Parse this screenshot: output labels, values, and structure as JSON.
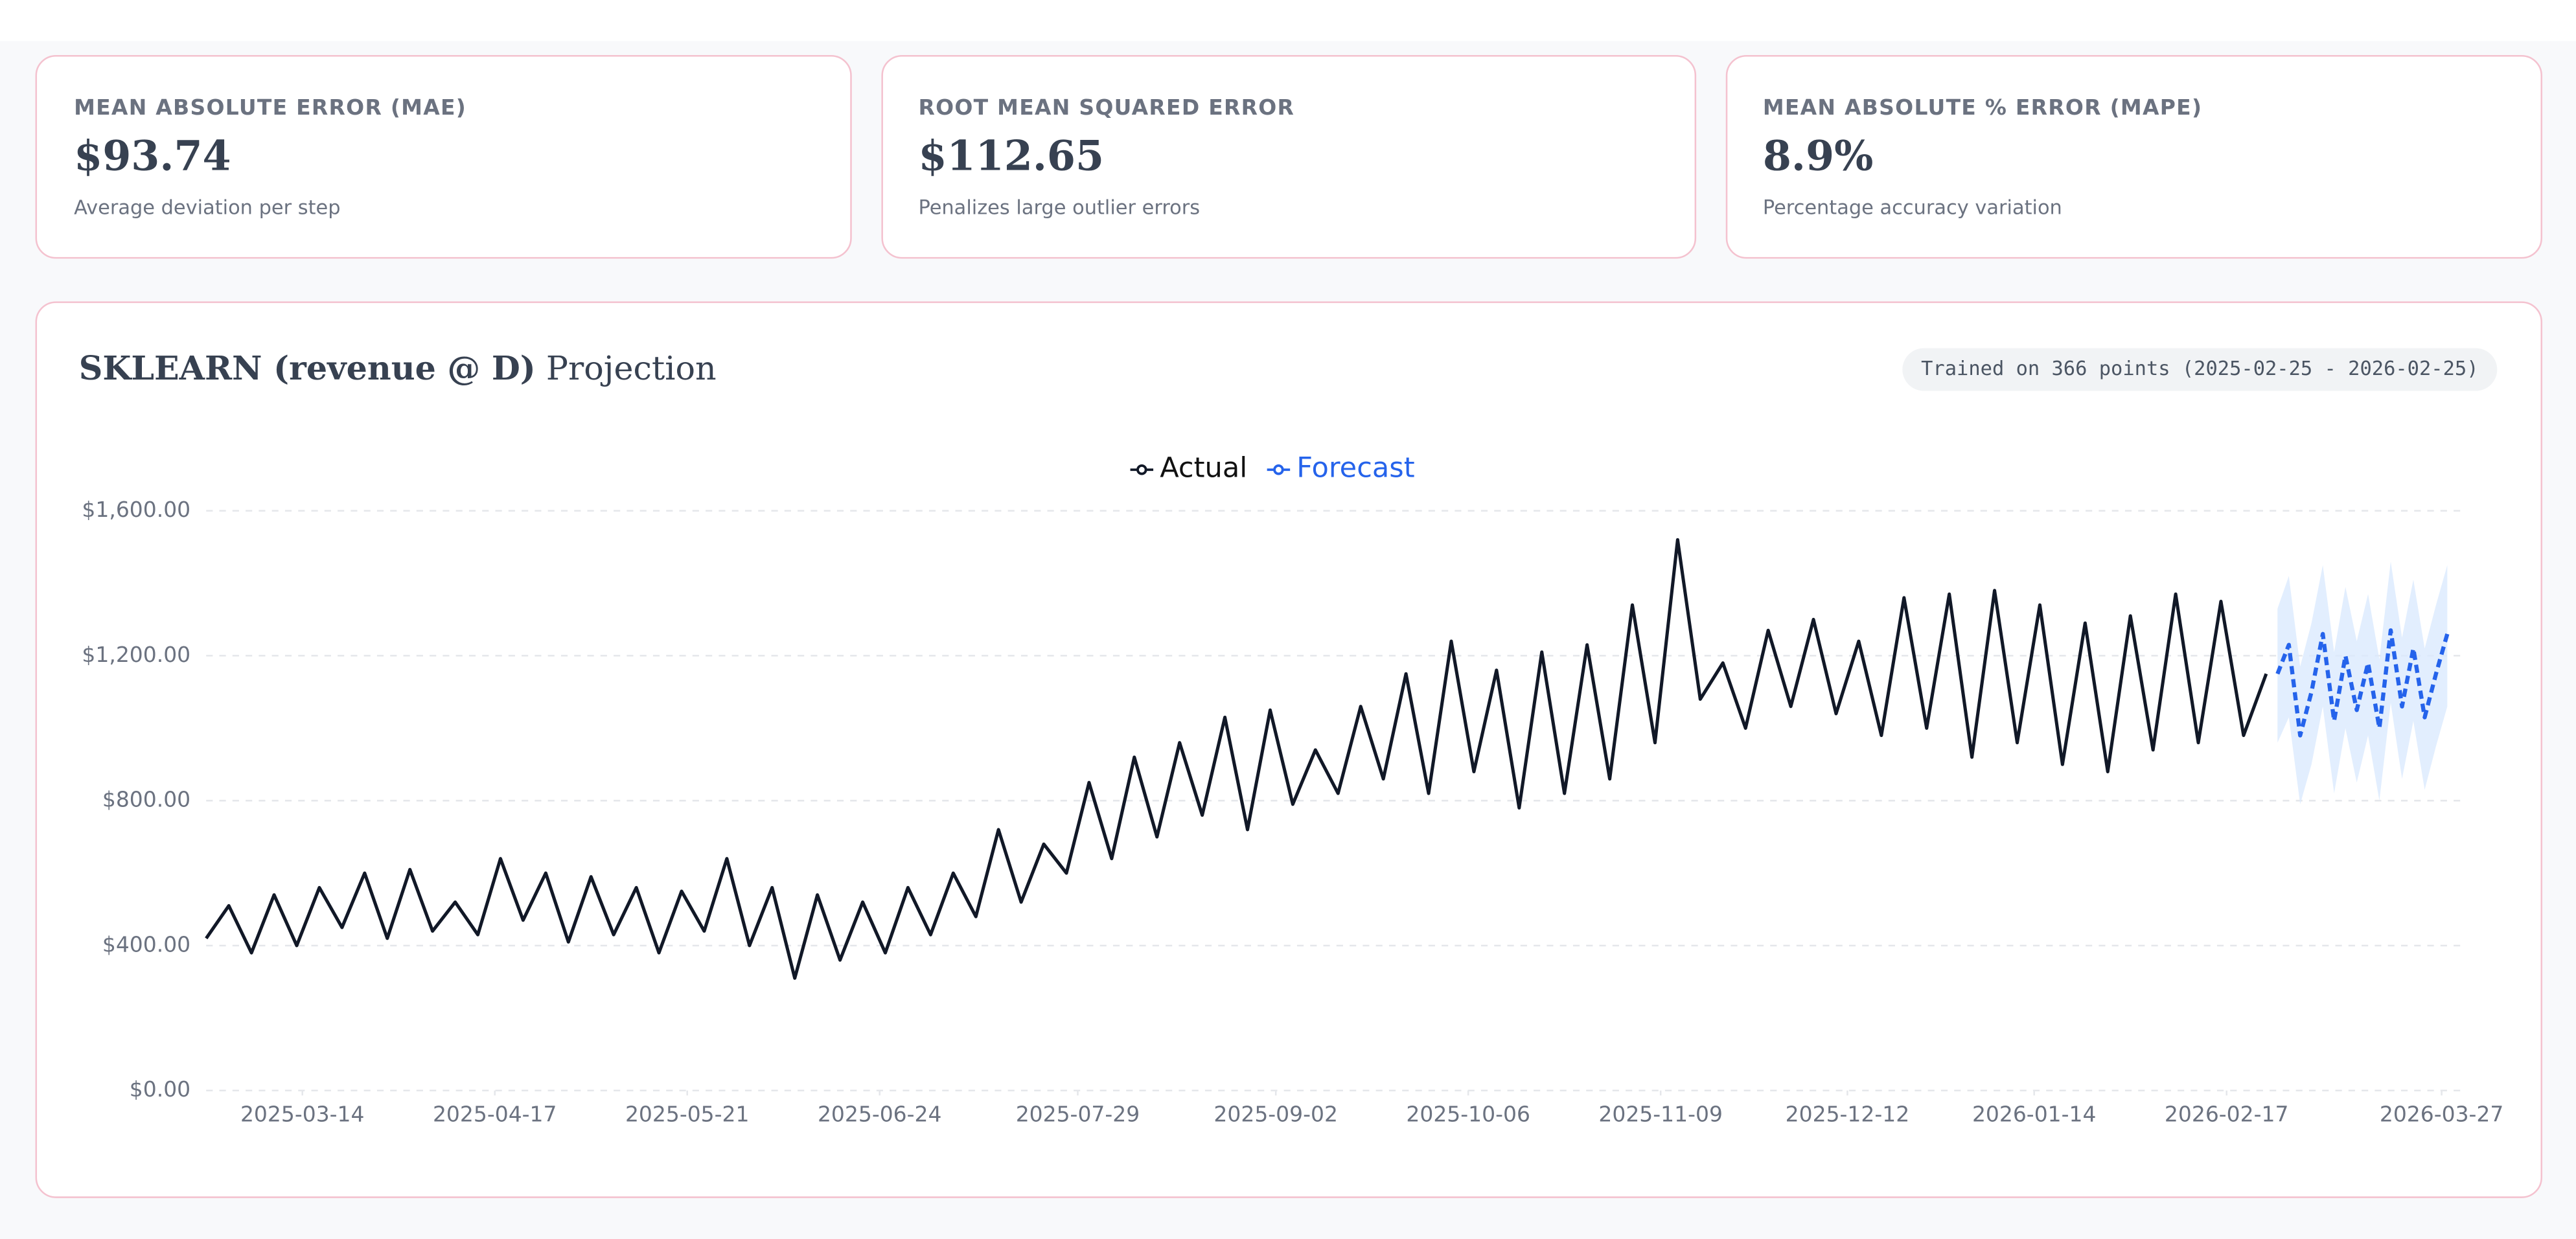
{
  "cards": [
    {
      "label": "MEAN ABSOLUTE ERROR (MAE)",
      "value": "$93.74",
      "note": "Average deviation per step"
    },
    {
      "label": "ROOT MEAN SQUARED ERROR",
      "value": "$112.65",
      "note": "Penalizes large outlier errors"
    },
    {
      "label": "MEAN ABSOLUTE % ERROR (MAPE)",
      "value": "8.9%",
      "note": "Percentage accuracy variation"
    }
  ],
  "chart_data": {
    "type": "line",
    "title": "SKLEARN (revenue @ D)",
    "title_rest": "Projection",
    "badge": "Trained on 366 points (2025-02-25 - 2026-02-25)",
    "xlim": [
      "2025-02-25",
      "2026-03-31"
    ],
    "xticks": [
      "2025-03-14",
      "2025-04-17",
      "2025-05-21",
      "2025-06-24",
      "2025-07-29",
      "2025-09-02",
      "2025-10-06",
      "2025-11-09",
      "2025-12-12",
      "2026-01-14",
      "2026-02-17",
      "2026-03-27"
    ],
    "ylim": [
      0,
      1600
    ],
    "yticks": [
      {
        "value": 0,
        "label": "$0.00"
      },
      {
        "value": 400,
        "label": "$400.00"
      },
      {
        "value": 800,
        "label": "$800.00"
      },
      {
        "value": 1200,
        "label": "$1,200.00"
      },
      {
        "value": 1600,
        "label": "$1,600.00"
      }
    ],
    "grid": true,
    "legend": "top",
    "series": [
      {
        "name": "Actual",
        "color": "#111827",
        "x": [
          "2025-02-25",
          "2025-03-01",
          "2025-03-05",
          "2025-03-09",
          "2025-03-13",
          "2025-03-17",
          "2025-03-21",
          "2025-03-25",
          "2025-03-29",
          "2025-04-02",
          "2025-04-06",
          "2025-04-10",
          "2025-04-14",
          "2025-04-18",
          "2025-04-22",
          "2025-04-26",
          "2025-04-30",
          "2025-05-04",
          "2025-05-08",
          "2025-05-12",
          "2025-05-16",
          "2025-05-20",
          "2025-05-24",
          "2025-05-28",
          "2025-06-01",
          "2025-06-05",
          "2025-06-09",
          "2025-06-13",
          "2025-06-17",
          "2025-06-21",
          "2025-06-25",
          "2025-06-29",
          "2025-07-03",
          "2025-07-07",
          "2025-07-11",
          "2025-07-15",
          "2025-07-19",
          "2025-07-23",
          "2025-07-27",
          "2025-07-31",
          "2025-08-04",
          "2025-08-08",
          "2025-08-12",
          "2025-08-16",
          "2025-08-20",
          "2025-08-24",
          "2025-08-28",
          "2025-09-01",
          "2025-09-05",
          "2025-09-09",
          "2025-09-13",
          "2025-09-17",
          "2025-09-21",
          "2025-09-25",
          "2025-09-29",
          "2025-10-03",
          "2025-10-07",
          "2025-10-11",
          "2025-10-15",
          "2025-10-19",
          "2025-10-23",
          "2025-10-27",
          "2025-10-31",
          "2025-11-04",
          "2025-11-08",
          "2025-11-12",
          "2025-11-16",
          "2025-11-20",
          "2025-11-24",
          "2025-11-28",
          "2025-12-02",
          "2025-12-06",
          "2025-12-10",
          "2025-12-14",
          "2025-12-18",
          "2025-12-22",
          "2025-12-26",
          "2025-12-30",
          "2026-01-03",
          "2026-01-07",
          "2026-01-11",
          "2026-01-15",
          "2026-01-19",
          "2026-01-23",
          "2026-01-27",
          "2026-01-31",
          "2026-02-04",
          "2026-02-08",
          "2026-02-12",
          "2026-02-16",
          "2026-02-20",
          "2026-02-24"
        ],
        "values": [
          420,
          510,
          380,
          540,
          400,
          560,
          450,
          600,
          420,
          610,
          440,
          520,
          430,
          640,
          470,
          600,
          410,
          590,
          430,
          560,
          380,
          550,
          440,
          640,
          400,
          560,
          310,
          540,
          360,
          520,
          380,
          560,
          430,
          600,
          480,
          720,
          520,
          680,
          600,
          850,
          640,
          920,
          700,
          960,
          760,
          1030,
          720,
          1050,
          790,
          940,
          820,
          1060,
          860,
          1150,
          820,
          1240,
          880,
          1160,
          780,
          1210,
          820,
          1230,
          860,
          1340,
          960,
          1520,
          1080,
          1180,
          1000,
          1270,
          1060,
          1300,
          1040,
          1240,
          980,
          1360,
          1000,
          1370,
          920,
          1380,
          960,
          1340,
          900,
          1290,
          880,
          1310,
          940,
          1370,
          960,
          1350,
          980,
          1150
        ]
      },
      {
        "name": "Forecast",
        "color": "#2563eb",
        "dashed": true,
        "band_color": "#dbeafe",
        "x": [
          "2026-02-26",
          "2026-02-28",
          "2026-03-02",
          "2026-03-04",
          "2026-03-06",
          "2026-03-08",
          "2026-03-10",
          "2026-03-12",
          "2026-03-14",
          "2026-03-16",
          "2026-03-18",
          "2026-03-20",
          "2026-03-22",
          "2026-03-24",
          "2026-03-26",
          "2026-03-28"
        ],
        "values": [
          1150,
          1230,
          980,
          1100,
          1260,
          1020,
          1200,
          1050,
          1180,
          1000,
          1270,
          1060,
          1220,
          1030,
          1150,
          1260
        ],
        "lower": [
          960,
          1030,
          790,
          900,
          1060,
          820,
          1000,
          850,
          980,
          800,
          1070,
          860,
          1020,
          830,
          950,
          1060
        ],
        "upper": [
          1330,
          1420,
          1170,
          1290,
          1450,
          1210,
          1390,
          1240,
          1370,
          1190,
          1460,
          1250,
          1410,
          1220,
          1340,
          1450
        ]
      }
    ]
  }
}
